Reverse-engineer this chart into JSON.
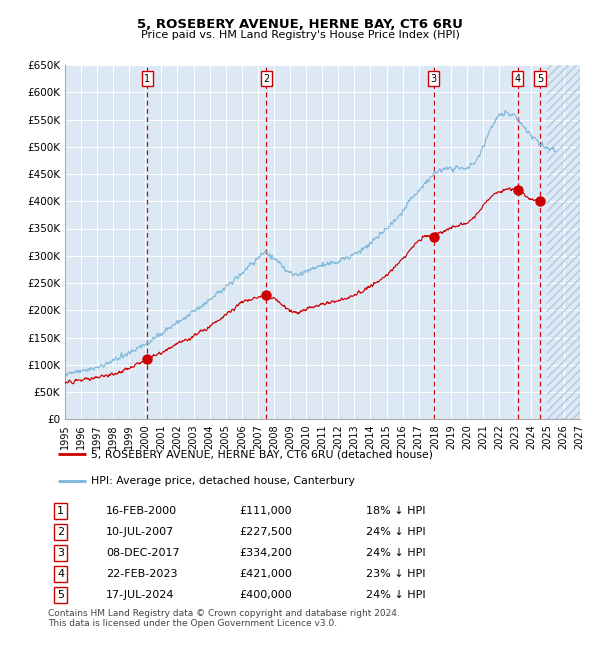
{
  "title": "5, ROSEBERY AVENUE, HERNE BAY, CT6 6RU",
  "subtitle": "Price paid vs. HM Land Registry's House Price Index (HPI)",
  "xlim": [
    1995,
    2027
  ],
  "ylim": [
    0,
    650000
  ],
  "yticks": [
    0,
    50000,
    100000,
    150000,
    200000,
    250000,
    300000,
    350000,
    400000,
    450000,
    500000,
    550000,
    600000,
    650000
  ],
  "ytick_labels": [
    "£0",
    "£50K",
    "£100K",
    "£150K",
    "£200K",
    "£250K",
    "£300K",
    "£350K",
    "£400K",
    "£450K",
    "£500K",
    "£550K",
    "£600K",
    "£650K"
  ],
  "xticks": [
    1995,
    1996,
    1997,
    1998,
    1999,
    2000,
    2001,
    2002,
    2003,
    2004,
    2005,
    2006,
    2007,
    2008,
    2009,
    2010,
    2011,
    2012,
    2013,
    2014,
    2015,
    2016,
    2017,
    2018,
    2019,
    2020,
    2021,
    2022,
    2023,
    2024,
    2025,
    2026,
    2027
  ],
  "sales": [
    {
      "label": "1",
      "date": 2000.12,
      "price": 111000
    },
    {
      "label": "2",
      "date": 2007.53,
      "price": 227500
    },
    {
      "label": "3",
      "date": 2017.93,
      "price": 334200
    },
    {
      "label": "4",
      "date": 2023.14,
      "price": 421000
    },
    {
      "label": "5",
      "date": 2024.54,
      "price": 400000
    }
  ],
  "legend_line1": "5, ROSEBERY AVENUE, HERNE BAY, CT6 6RU (detached house)",
  "legend_line2": "HPI: Average price, detached house, Canterbury",
  "table_rows": [
    [
      "1",
      "16-FEB-2000",
      "£111,000",
      "18% ↓ HPI"
    ],
    [
      "2",
      "10-JUL-2007",
      "£227,500",
      "24% ↓ HPI"
    ],
    [
      "3",
      "08-DEC-2017",
      "£334,200",
      "24% ↓ HPI"
    ],
    [
      "4",
      "22-FEB-2023",
      "£421,000",
      "23% ↓ HPI"
    ],
    [
      "5",
      "17-JUL-2024",
      "£400,000",
      "24% ↓ HPI"
    ]
  ],
  "footnote1": "Contains HM Land Registry data © Crown copyright and database right 2024.",
  "footnote2": "This data is licensed under the Open Government Licence v3.0.",
  "hpi_color": "#7ab4d8",
  "sale_color": "#cc0000",
  "bg_color": "#dce9f5",
  "grid_color": "#ffffff",
  "vline_color": "#cc0000",
  "future_cutoff": 2025.0,
  "hpi_keypoints_x": [
    1995.0,
    1996.0,
    1997.0,
    1998.0,
    1999.0,
    2000.0,
    2001.0,
    2002.0,
    2003.0,
    2004.0,
    2005.0,
    2006.0,
    2007.0,
    2007.5,
    2008.0,
    2008.5,
    2009.0,
    2009.5,
    2010.0,
    2010.5,
    2011.0,
    2011.5,
    2012.0,
    2012.5,
    2013.0,
    2013.5,
    2014.0,
    2014.5,
    2015.0,
    2015.5,
    2016.0,
    2016.5,
    2017.0,
    2017.5,
    2018.0,
    2018.5,
    2019.0,
    2019.5,
    2020.0,
    2020.5,
    2021.0,
    2021.5,
    2022.0,
    2022.5,
    2023.0,
    2023.5,
    2024.0,
    2024.5,
    2025.0,
    2025.5
  ],
  "hpi_keypoints_y": [
    83000,
    88000,
    95000,
    108000,
    122000,
    137000,
    158000,
    177000,
    197000,
    218000,
    243000,
    268000,
    295000,
    308000,
    295000,
    282000,
    268000,
    265000,
    272000,
    278000,
    283000,
    286000,
    290000,
    296000,
    304000,
    312000,
    322000,
    335000,
    350000,
    364000,
    382000,
    402000,
    420000,
    438000,
    452000,
    458000,
    460000,
    462000,
    460000,
    470000,
    500000,
    535000,
    558000,
    562000,
    555000,
    538000,
    520000,
    508000,
    498000,
    492000
  ],
  "sale_keypoints_x": [
    1995.0,
    1996.0,
    1997.0,
    1998.0,
    1999.0,
    2000.0,
    2000.12,
    2001.0,
    2002.0,
    2003.0,
    2004.0,
    2005.0,
    2006.0,
    2007.0,
    2007.53,
    2008.0,
    2008.5,
    2009.0,
    2009.5,
    2010.0,
    2010.5,
    2011.0,
    2011.5,
    2012.0,
    2012.5,
    2013.0,
    2013.5,
    2014.0,
    2014.5,
    2015.0,
    2015.5,
    2016.0,
    2016.5,
    2017.0,
    2017.5,
    2017.93,
    2018.0,
    2018.5,
    2019.0,
    2019.5,
    2020.0,
    2020.5,
    2021.0,
    2021.5,
    2022.0,
    2022.5,
    2023.0,
    2023.14,
    2023.5,
    2024.0,
    2024.54
  ],
  "sale_keypoints_y": [
    68000,
    72000,
    76000,
    83000,
    94000,
    107000,
    111000,
    122000,
    138000,
    152000,
    170000,
    192000,
    215000,
    225000,
    227500,
    222000,
    210000,
    198000,
    196000,
    202000,
    207000,
    212000,
    215000,
    218000,
    222000,
    228000,
    235000,
    244000,
    254000,
    265000,
    278000,
    295000,
    312000,
    328000,
    338000,
    334200,
    340000,
    345000,
    352000,
    358000,
    360000,
    372000,
    392000,
    408000,
    418000,
    422000,
    422000,
    421000,
    415000,
    403000,
    400000
  ]
}
